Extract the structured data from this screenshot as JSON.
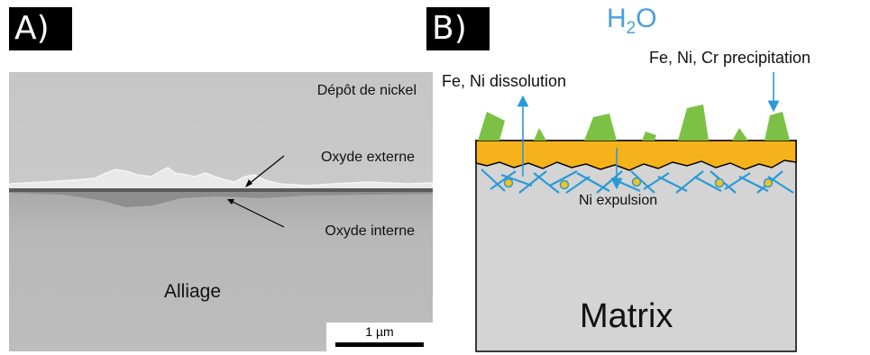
{
  "panel_a": {
    "label": "A)",
    "deposit_label": "Dépôt de nickel",
    "external_oxide_label": "Oxyde externe",
    "internal_oxide_label": "Oxyde interne",
    "alloy_label": "Alliage",
    "scale_bar_label": "1 µm"
  },
  "panel_b": {
    "label": "B)",
    "water_text": "H",
    "water_subscript": "2",
    "water_suffix": "O",
    "dissolution_label": "Fe, Ni dissolution",
    "precipitation_label": "Fe, Ni, Cr precipitation",
    "expulsion_label": "Ni expulsion",
    "matrix_label": "Matrix"
  },
  "colors": {
    "water_blue": "#4a9fdc",
    "precipitate_green": "#7cc146",
    "oxide_orange": "#f6b21b",
    "matrix_grey": "#d4d4d4",
    "network_blue": "#2a9ad8",
    "nodule_yellow": "#f4c21a"
  }
}
